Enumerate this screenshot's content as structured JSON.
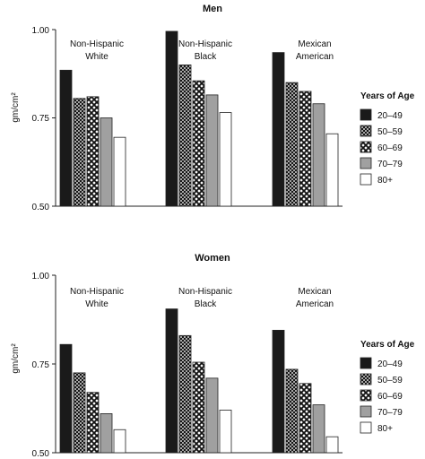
{
  "legend": {
    "title": "Years of Age",
    "entries": [
      {
        "label": "20–49",
        "pattern": "solid-black"
      },
      {
        "label": "50–59",
        "pattern": "fine-crosshatch"
      },
      {
        "label": "60–69",
        "pattern": "coarse-crosshatch"
      },
      {
        "label": "70–79",
        "pattern": "solid-gray"
      },
      {
        "label": "80+",
        "pattern": "white"
      }
    ]
  },
  "colors": {
    "bar_black": "#1a1a1a",
    "bar_gray": "#a0a0a0",
    "bar_white": "#ffffff",
    "axis": "#222222"
  },
  "chart_data": [
    {
      "type": "bar",
      "title": "Men",
      "ylabel": "gm/cm²",
      "ylim": [
        0.5,
        1.0
      ],
      "yticks": [
        "1.00",
        "0.75",
        "0.50"
      ],
      "ytick_values": [
        1.0,
        0.75,
        0.5
      ],
      "categories": [
        [
          "Non-Hispanic",
          "White"
        ],
        [
          "Non-Hispanic",
          "Black"
        ],
        [
          "Mexican",
          "American"
        ]
      ],
      "series": [
        {
          "name": "20–49",
          "values": [
            0.885,
            0.995,
            0.935
          ]
        },
        {
          "name": "50–59",
          "values": [
            0.805,
            0.9,
            0.85
          ]
        },
        {
          "name": "60–69",
          "values": [
            0.81,
            0.855,
            0.825
          ]
        },
        {
          "name": "70–79",
          "values": [
            0.75,
            0.815,
            0.79
          ]
        },
        {
          "name": "80+",
          "values": [
            0.695,
            0.765,
            0.705
          ]
        }
      ]
    },
    {
      "type": "bar",
      "title": "Women",
      "ylabel": "gm/cm²",
      "ylim": [
        0.5,
        1.0
      ],
      "yticks": [
        "1.00",
        "0.75",
        "0.50"
      ],
      "ytick_values": [
        1.0,
        0.75,
        0.5
      ],
      "categories": [
        [
          "Non-Hispanic",
          "White"
        ],
        [
          "Non-Hispanic",
          "Black"
        ],
        [
          "Mexican",
          "American"
        ]
      ],
      "series": [
        {
          "name": "20–49",
          "values": [
            0.805,
            0.905,
            0.845
          ]
        },
        {
          "name": "50–59",
          "values": [
            0.725,
            0.83,
            0.735
          ]
        },
        {
          "name": "60–69",
          "values": [
            0.67,
            0.755,
            0.695
          ]
        },
        {
          "name": "70–79",
          "values": [
            0.61,
            0.71,
            0.635
          ]
        },
        {
          "name": "80+",
          "values": [
            0.565,
            0.62,
            0.545
          ]
        }
      ]
    }
  ]
}
